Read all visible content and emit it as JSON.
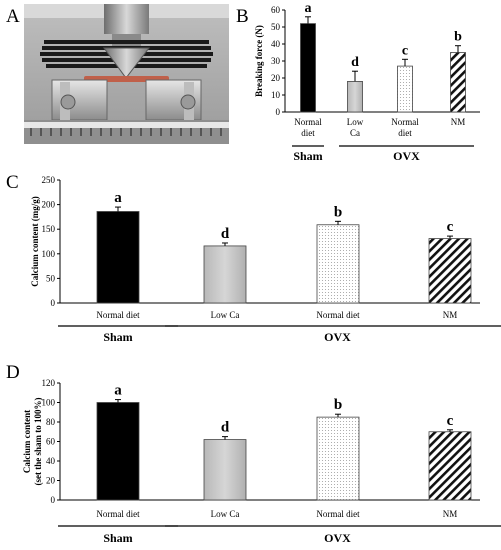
{
  "panels": {
    "a": "A",
    "b": "B",
    "c": "C",
    "d": "D"
  },
  "chart_data": [
    {
      "type": "bar",
      "panel": "B",
      "ylabel": "Breaking force (N)",
      "ylim": [
        0,
        60
      ],
      "yticks": [
        0,
        10,
        20,
        30,
        40,
        50,
        60
      ],
      "categories": [
        "Normal diet",
        "Low Ca",
        "Normal diet",
        "NM"
      ],
      "values": [
        52,
        18,
        27,
        35
      ],
      "errors": [
        4,
        6,
        4,
        4
      ],
      "letters": [
        "a",
        "d",
        "c",
        "b"
      ],
      "patterns": [
        "solid-black",
        "light-gray",
        "dotted",
        "diagonal-hatch"
      ],
      "groups": [
        {
          "label": "Sham",
          "bars": [
            0
          ]
        },
        {
          "label": "OVX",
          "bars": [
            1,
            2,
            3
          ]
        }
      ]
    },
    {
      "type": "bar",
      "panel": "C",
      "ylabel": "Calcium content (mg/g)",
      "ylim": [
        0,
        250
      ],
      "yticks": [
        0,
        50,
        100,
        150,
        200,
        250
      ],
      "categories": [
        "Normal diet",
        "Low Ca",
        "Normal diet",
        "NM"
      ],
      "values": [
        186,
        116,
        159,
        131
      ],
      "errors": [
        9,
        6,
        7,
        5
      ],
      "letters": [
        "a",
        "d",
        "b",
        "c"
      ],
      "patterns": [
        "solid-black",
        "light-gray",
        "dotted",
        "diagonal-hatch"
      ],
      "groups": [
        {
          "label": "Sham",
          "bars": [
            0
          ]
        },
        {
          "label": "OVX",
          "bars": [
            1,
            2,
            3
          ]
        }
      ]
    },
    {
      "type": "bar",
      "panel": "D",
      "ylabel": "Calcium content (set the sham to 100%)",
      "ylabel_lines": [
        "Calcium content",
        "(set the sham to 100%)"
      ],
      "ylim": [
        0,
        120
      ],
      "yticks": [
        0,
        20,
        40,
        60,
        80,
        100,
        120
      ],
      "categories": [
        "Normal diet",
        "Low Ca",
        "Normal diet",
        "NM"
      ],
      "values": [
        100,
        62,
        85,
        70
      ],
      "errors": [
        3,
        3,
        3,
        2
      ],
      "letters": [
        "a",
        "d",
        "b",
        "c"
      ],
      "patterns": [
        "solid-black",
        "light-gray",
        "dotted",
        "diagonal-hatch"
      ],
      "groups": [
        {
          "label": "Sham",
          "bars": [
            0
          ]
        },
        {
          "label": "OVX",
          "bars": [
            1,
            2,
            3
          ]
        }
      ]
    }
  ]
}
